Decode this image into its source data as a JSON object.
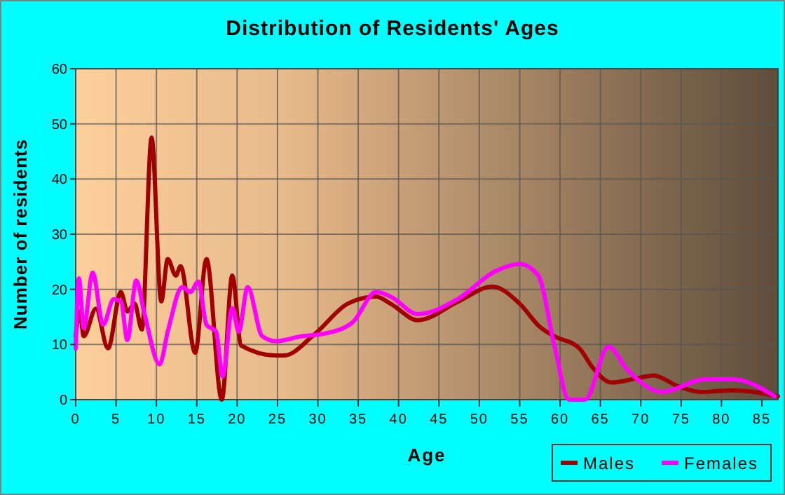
{
  "chart_data": {
    "type": "line",
    "title": "Distribution of Residents' Ages",
    "xlabel": "Age",
    "ylabel": "Number of residents",
    "xlim": [
      0,
      87
    ],
    "ylim": [
      0,
      60
    ],
    "xticks": [
      0,
      5,
      10,
      15,
      20,
      25,
      30,
      35,
      40,
      45,
      50,
      55,
      60,
      65,
      70,
      75,
      80,
      85
    ],
    "yticks": [
      0,
      10,
      20,
      30,
      40,
      50,
      60
    ],
    "grid": true,
    "legend": "bottom right",
    "line_style": "solid",
    "marker": "none",
    "series": [
      {
        "name": "Males",
        "color": "#a00000",
        "x": [
          0,
          0.5,
          1,
          2.5,
          4,
          5.6,
          6.4,
          7.3,
          8.2,
          9.4,
          10.6,
          11.4,
          12.4,
          13,
          14.8,
          16.2,
          18.1,
          19.4,
          20.5,
          24.8,
          25.8,
          29.7,
          33.7,
          37.2,
          39,
          42.4,
          47.4,
          51.6,
          55,
          57.5,
          59.3,
          62.4,
          64,
          66.4,
          69.3,
          71.6,
          74.5,
          77.4,
          81.4,
          87
        ],
        "values": [
          11.5,
          16,
          11.5,
          16.5,
          9.3,
          19.5,
          16,
          17.4,
          12.7,
          47.5,
          17.8,
          25.5,
          22.5,
          24.2,
          8.5,
          25.5,
          0,
          22.5,
          9.8,
          8,
          8,
          12,
          17.4,
          18.7,
          17.4,
          14.4,
          17.8,
          20.5,
          17.4,
          13.2,
          11.5,
          9.3,
          5.9,
          3.1,
          3.8,
          4.4,
          2.5,
          1.4,
          1.7,
          0.6
        ]
      },
      {
        "name": "Females",
        "color": "#ff00ff",
        "x": [
          0,
          0.4,
          1,
          2.1,
          3.4,
          4.7,
          5.6,
          6.4,
          7.5,
          8.5,
          10.4,
          11.4,
          13.2,
          14.2,
          15.2,
          16.2,
          17.4,
          18.2,
          19.4,
          20.2,
          21.3,
          23.1,
          24.8,
          28,
          30.9,
          34.3,
          37.2,
          39,
          42.4,
          47.4,
          52,
          55,
          57.3,
          59.3,
          61.1,
          63.1,
          66,
          68.3,
          72.6,
          78,
          81.4,
          86.6
        ],
        "values": [
          9.3,
          22,
          13,
          23,
          13.6,
          18.2,
          17.8,
          10.8,
          21.6,
          15.7,
          6.4,
          12.3,
          20.4,
          19.5,
          21.4,
          13.6,
          12.3,
          4.2,
          16.6,
          12.3,
          20.4,
          11.5,
          10.6,
          11.5,
          12,
          14,
          19.5,
          18.7,
          15.5,
          18.3,
          23.3,
          24.6,
          22.5,
          9.8,
          0,
          0,
          9.6,
          5.5,
          1.4,
          3.7,
          3.7,
          0.6
        ]
      }
    ]
  }
}
